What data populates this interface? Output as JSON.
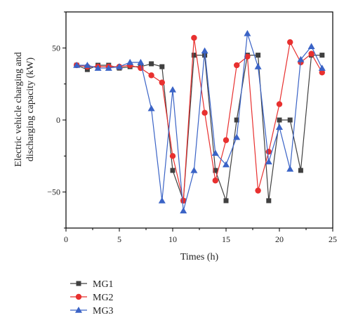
{
  "chart_data": {
    "type": "line",
    "title": "",
    "xlabel": "Times (h)",
    "ylabel_lines": [
      "Electric vehicle charging and",
      "discharging capacity (kW)"
    ],
    "xlim": [
      0,
      25
    ],
    "ylim": [
      -75,
      75
    ],
    "xticks": [
      0,
      5,
      10,
      15,
      20,
      25
    ],
    "yticks": [
      -50,
      0,
      50
    ],
    "grid": false,
    "legend_position": "bottom-left",
    "x": [
      1,
      2,
      3,
      4,
      5,
      6,
      7,
      8,
      9,
      10,
      11,
      12,
      13,
      14,
      15,
      16,
      17,
      18,
      19,
      20,
      21,
      22,
      23,
      24
    ],
    "series": [
      {
        "name": "MG1",
        "color": "#404040",
        "marker": "square",
        "values": [
          38,
          35,
          38,
          38,
          36,
          37,
          37,
          39,
          37,
          -35,
          -56,
          45,
          45,
          -35,
          -56,
          0,
          45,
          45,
          -56,
          0,
          0,
          -35,
          45,
          45
        ]
      },
      {
        "name": "MG2",
        "color": "#e8302f",
        "marker": "circle",
        "values": [
          38,
          37,
          37,
          37,
          37,
          38,
          36,
          31,
          26,
          -25,
          -56,
          57,
          5,
          -42,
          -14,
          38,
          44,
          -49,
          -22,
          11,
          54,
          40,
          46,
          33
        ]
      },
      {
        "name": "MG3",
        "color": "#3a63c6",
        "marker": "triangle",
        "values": [
          38,
          38,
          36,
          36,
          37,
          40,
          40,
          8,
          -56,
          21,
          -63,
          -35,
          48,
          -23,
          -31,
          -12,
          60,
          37,
          -29,
          -5,
          -34,
          42,
          51,
          36
        ]
      }
    ]
  }
}
